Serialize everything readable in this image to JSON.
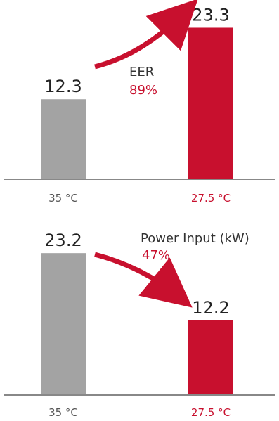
{
  "colors": {
    "gray": "#a3a3a3",
    "red": "#c8102e",
    "axis": "#888888",
    "tick_gray": "#555555"
  },
  "chart_data": [
    {
      "type": "bar",
      "categories": [
        "35 °C",
        "27.5 °C"
      ],
      "values": [
        12.3,
        23.3
      ],
      "data_labels": [
        "12.3",
        "23.3"
      ],
      "bar_colors": [
        "#a3a3a3",
        "#c8102e"
      ],
      "annotation": {
        "label": "EER",
        "change": "89%",
        "direction": "up"
      },
      "ylim": [
        0,
        25
      ]
    },
    {
      "type": "bar",
      "categories": [
        "35 °C",
        "27.5 °C"
      ],
      "values": [
        23.2,
        12.2
      ],
      "data_labels": [
        "23.2",
        "12.2"
      ],
      "bar_colors": [
        "#a3a3a3",
        "#c8102e"
      ],
      "annotation": {
        "label": "Power Input (kW)",
        "change": "47%",
        "direction": "down"
      },
      "ylim": [
        0,
        25
      ]
    }
  ]
}
